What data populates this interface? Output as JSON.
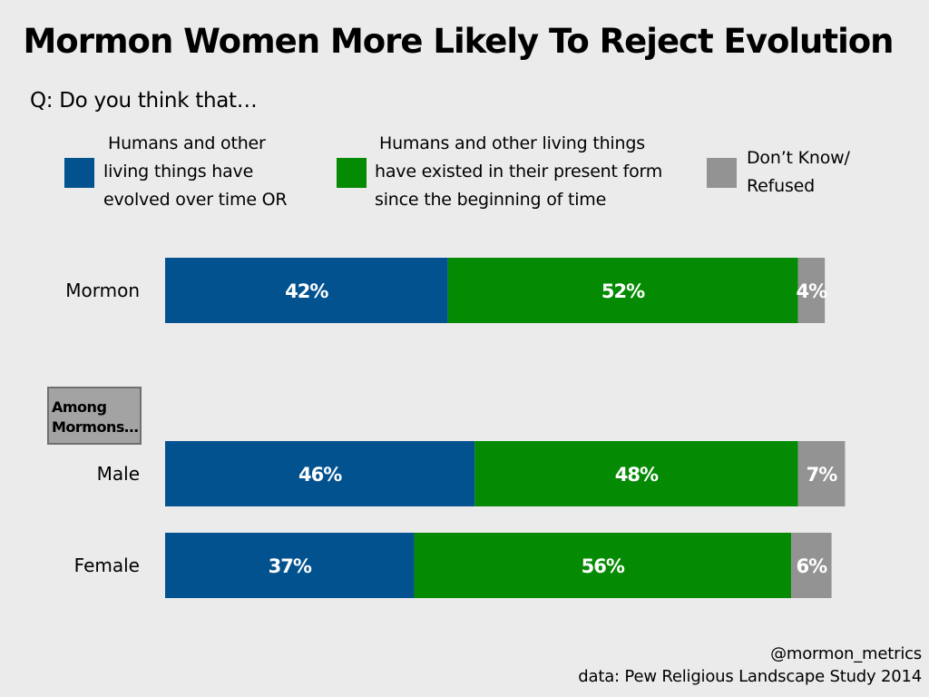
{
  "chart_data": {
    "type": "bar",
    "orientation": "horizontal",
    "stacked": true,
    "title": "Mormon Women More Likely To Reject Evolution",
    "subtitle": "Q: Do you think that…",
    "categories": [
      "Mormon",
      "Male",
      "Female"
    ],
    "group_label": "Among Mormons…",
    "xlim": [
      0,
      100
    ],
    "series": [
      {
        "name": "Humans and other living things have evolved over time OR",
        "color": "#02528f",
        "values": [
          42,
          46,
          37
        ],
        "labels": [
          "42%",
          "46%",
          "37%"
        ]
      },
      {
        "name": "Humans and other living things have existed in their present form since the beginning of time",
        "color": "#058a03",
        "values": [
          52,
          48,
          56
        ],
        "labels": [
          "52%",
          "48%",
          "56%"
        ]
      },
      {
        "name": "Don’t Know/ Refused",
        "color": "#939393",
        "values": [
          4,
          7,
          6
        ],
        "labels": [
          "4%",
          "7%",
          "6%"
        ]
      }
    ]
  },
  "legend": {
    "evolved_line1": "Humans and other",
    "evolved_line2": "living things have",
    "evolved_line3": "evolved over time OR",
    "present_line1": "Humans and other living things",
    "present_line2": "have existed in their present form",
    "present_line3": "since the beginning of time",
    "dk_line1": "Don’t Know/",
    "dk_line2": "Refused"
  },
  "group_box": {
    "line1": "Among",
    "line2": "Mormons…"
  },
  "credits": {
    "handle": "@mormon_metrics",
    "source": "data: Pew Religious Landscape Study 2014"
  }
}
